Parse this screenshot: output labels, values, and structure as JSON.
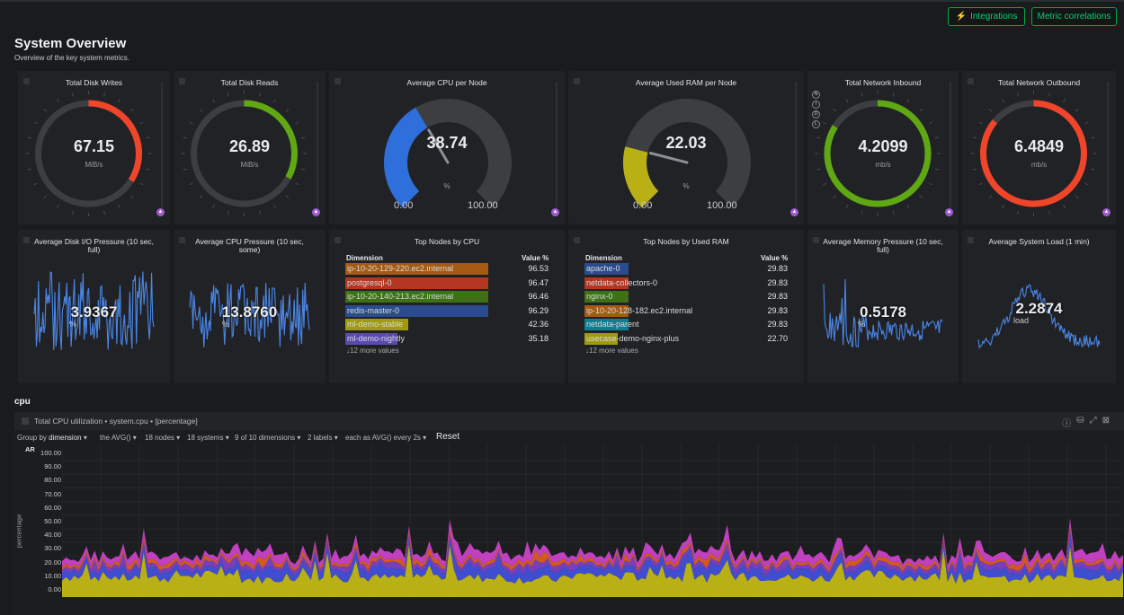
{
  "header": {
    "integrations_label": "Integrations",
    "metric_correlations_label": "Metric correlations"
  },
  "page": {
    "title": "System Overview",
    "subtitle": "Overview of the key system metrics."
  },
  "gauges": [
    {
      "title": "Total Disk Writes",
      "value": "67.15",
      "unit": "MiB/s",
      "fraction": 0.34,
      "color": "#f0452b"
    },
    {
      "title": "Total Disk Reads",
      "value": "26.89",
      "unit": "MiB/s",
      "fraction": 0.33,
      "color": "#5fa814"
    },
    {
      "title": "Average CPU per Node",
      "value": "38.74",
      "unit": "%",
      "min": "0.00",
      "max": "100.00",
      "fraction": 0.3874,
      "color": "#2f6fdb"
    },
    {
      "title": "Average Used RAM per Node",
      "value": "22.03",
      "unit": "%",
      "min": "0.00",
      "max": "100.00",
      "fraction": 0.2203,
      "color": "#b8b014"
    },
    {
      "title": "Total Network Inbound",
      "value": "4.2099",
      "unit": "mb/s",
      "fraction": 0.84,
      "color": "#5fa814"
    },
    {
      "title": "Total Network Outbound",
      "value": "6.4849",
      "unit": "mb/s",
      "fraction": 0.86,
      "color": "#f0452b"
    }
  ],
  "side_letters": [
    "N",
    "I",
    "D",
    "L"
  ],
  "sparks": [
    {
      "title": "Average Disk I/O Pressure (10 sec, full)",
      "value": "3.9367",
      "unit": "%"
    },
    {
      "title": "Average CPU Pressure (10 sec, some)",
      "value": "13.8760",
      "unit": "%"
    },
    {
      "title": "Average Memory Pressure (10 sec, full)",
      "value": "0.5178",
      "unit": "%"
    },
    {
      "title": "Average System Load (1 min)",
      "value": "2.2874",
      "unit": "load"
    }
  ],
  "top_cpu": {
    "title": "Top Nodes by CPU",
    "col_dimension": "Dimension",
    "col_value": "Value %",
    "rows": [
      {
        "name": "ip-10-20-129-220.ec2.internal",
        "value": "96.53",
        "color": "#a45a13"
      },
      {
        "name": "postgresql-0",
        "value": "96.47",
        "color": "#b33621"
      },
      {
        "name": "ip-10-20-140-213.ec2.internal",
        "value": "96.46",
        "color": "#3f6f17"
      },
      {
        "name": "redis-master-0",
        "value": "96.29",
        "color": "#2a4c8e"
      },
      {
        "name": "ml-demo-stable",
        "value": "42.36",
        "color": "#a09a10"
      },
      {
        "name": "ml-demo-nightly",
        "value": "35.18",
        "color": "#5a4ab0"
      }
    ],
    "more": "↓12 more values"
  },
  "top_ram": {
    "title": "Top Nodes by Used RAM",
    "col_dimension": "Dimension",
    "col_value": "Value %",
    "rows": [
      {
        "name": "apache-0",
        "value": "29.83",
        "color": "#2a4c8e"
      },
      {
        "name": "netdata-collectors-0",
        "value": "29.83",
        "color": "#b33621"
      },
      {
        "name": "nginx-0",
        "value": "29.83",
        "color": "#3f6f17"
      },
      {
        "name": "ip-10-20-128-182.ec2.internal",
        "value": "29.83",
        "color": "#a45a13"
      },
      {
        "name": "netdata-parent",
        "value": "29.83",
        "color": "#0f7f8f"
      },
      {
        "name": "usecase-demo-nginx-plus",
        "value": "22.70",
        "color": "#a09a10"
      }
    ],
    "more": "↓12 more values"
  },
  "section": {
    "title": "cpu"
  },
  "cpu_chart": {
    "title": "Total CPU utilization • system.cpu • [percentage]",
    "controls": {
      "group_by": "Group by",
      "group_by_value": "dimension",
      "agg": "the AVG()",
      "nodes": "18 nodes",
      "systems": "18 systems",
      "dimensions": "9 of 10 dimensions",
      "labels": "2 labels",
      "each_as": "each as AVG() every 2s",
      "reset": "Reset"
    },
    "ylabel": "percentage",
    "ar_label": "AR"
  },
  "chart_data": {
    "type": "area",
    "title": "Total CPU utilization • system.cpu • [percentage]",
    "ylabel": "percentage",
    "y_ticks": [
      "100.00",
      "90.00",
      "80.00",
      "70.00",
      "60.00",
      "50.00",
      "40.00",
      "30.00",
      "20.00",
      "10.00",
      "0.00"
    ],
    "ylim": [
      0,
      100
    ],
    "stacked": true,
    "series_colors": [
      "#b8b014",
      "#3f4ed0",
      "#7a3fb8",
      "#d15a1f",
      "#c040c0"
    ],
    "series": [
      {
        "values": [
          15,
          14,
          16,
          13,
          15,
          14,
          15,
          14,
          13,
          16,
          15,
          14,
          15,
          14,
          16,
          15,
          13,
          14,
          15,
          16
        ]
      },
      {
        "values": [
          5,
          6,
          4,
          7,
          5,
          6,
          5,
          8,
          6,
          5,
          6,
          7,
          5,
          6,
          5,
          4,
          6,
          5,
          7,
          5
        ]
      },
      {
        "values": [
          3,
          3,
          4,
          3,
          3,
          4,
          3,
          3,
          4,
          3,
          3,
          3,
          4,
          3,
          3,
          3,
          4,
          3,
          3,
          3
        ]
      },
      {
        "values": [
          2,
          3,
          2,
          3,
          2,
          2,
          3,
          2,
          3,
          2,
          2,
          3,
          2,
          2,
          3,
          2,
          2,
          3,
          2,
          2
        ]
      },
      {
        "values": [
          4,
          5,
          3,
          6,
          4,
          5,
          4,
          7,
          5,
          4,
          5,
          6,
          4,
          5,
          4,
          3,
          5,
          4,
          6,
          4
        ]
      }
    ]
  }
}
